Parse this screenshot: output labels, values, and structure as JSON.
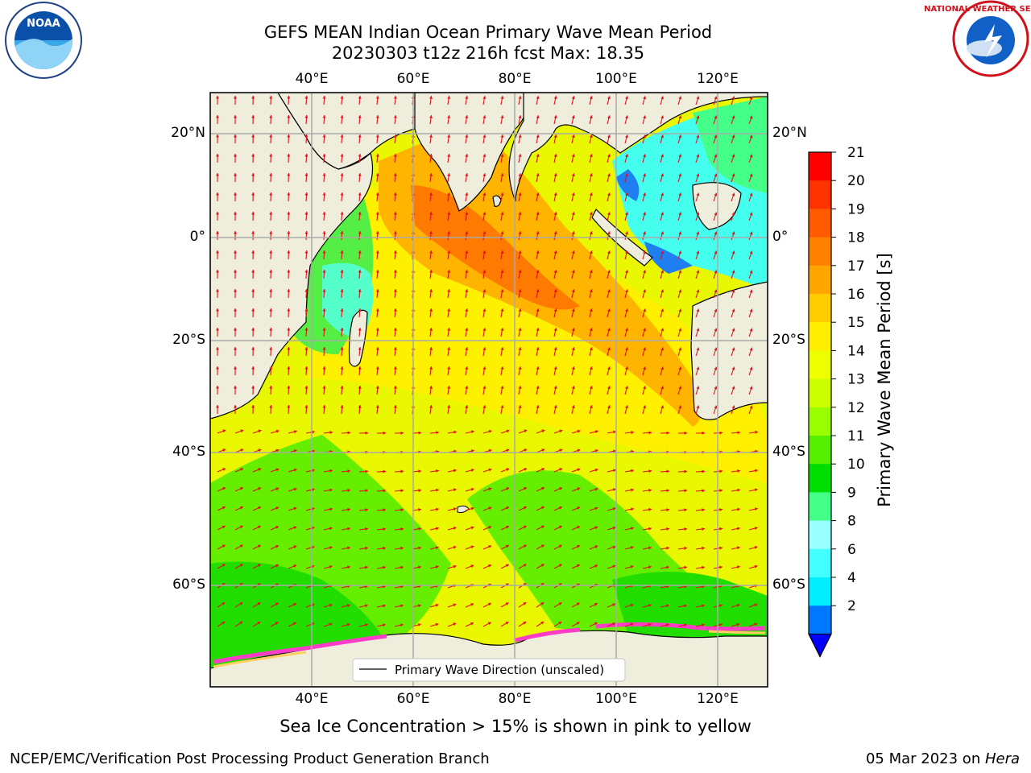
{
  "header": {
    "title_line1": "GEFS MEAN Indian Ocean Primary Wave Mean Period",
    "title_line2": "20230303 t12z 216h fcst   Max: 18.35"
  },
  "logos": {
    "left": {
      "icon": "noaa-logo-icon",
      "text": "NOAA"
    },
    "right": {
      "icon": "nws-logo-icon",
      "text": "NATIONAL WEATHER SERVICE"
    }
  },
  "map": {
    "lon_ticks": [
      "40°E",
      "60°E",
      "80°E",
      "100°E",
      "120°E"
    ],
    "lat_ticks": [
      "20°N",
      "0°",
      "20°S",
      "40°S",
      "60°S"
    ],
    "lon_range": [
      20,
      130
    ],
    "lat_range": [
      -73,
      27
    ],
    "grid": true,
    "legend_label": "Primary Wave Direction (unscaled)",
    "legend_placement": "bottom-center",
    "land_color": "#efeedd",
    "arrow_color": "#e3101a"
  },
  "colorbar": {
    "label": "Primary Wave Mean Period [s]",
    "tick_labels": [
      "21",
      "20",
      "19",
      "18",
      "17",
      "16",
      "15",
      "14",
      "13",
      "12",
      "11",
      "10",
      "9",
      "8",
      "6",
      "4",
      "2"
    ],
    "colors": [
      "#ff0000",
      "#ff3300",
      "#ff5a00",
      "#ff7f00",
      "#ffa500",
      "#ffcc00",
      "#ffee00",
      "#eeff00",
      "#ccff00",
      "#99ff00",
      "#55ee00",
      "#00dd00",
      "#44ff88",
      "#99ffff",
      "#44ffff",
      "#00eeff",
      "#0077ff"
    ],
    "extend": "min",
    "extend_color": "#0000ff"
  },
  "note": "Sea Ice Concentration > 15% is shown in pink to yellow",
  "footer": {
    "left": "NCEP/EMC/Verification Post Processing Product Generation Branch",
    "right_prefix": "05 Mar 2023 on ",
    "right_host": "Hera"
  }
}
